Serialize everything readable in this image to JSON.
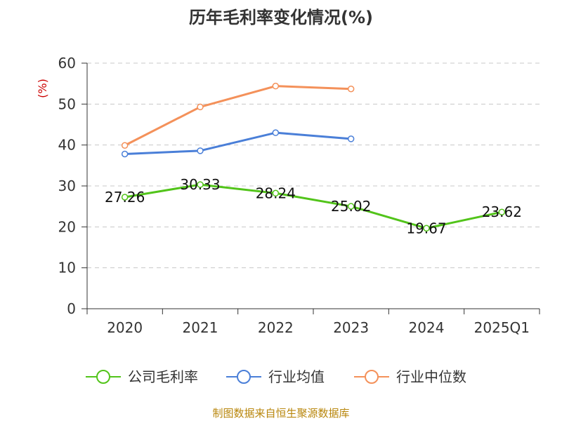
{
  "chart_data": {
    "type": "line",
    "title": "历年毛利率变化情况(%)",
    "ylabel": "(%)",
    "xlabel": "",
    "ylim": [
      0,
      60
    ],
    "yticks": [
      "0",
      "10",
      "20",
      "30",
      "40",
      "50",
      "60"
    ],
    "ytick_values": [
      0,
      10,
      20,
      30,
      40,
      50,
      60
    ],
    "categories": [
      "2020",
      "2021",
      "2022",
      "2023",
      "2024",
      "2025Q1"
    ],
    "grid": true,
    "legend_position": "bottom",
    "series": [
      {
        "name": "公司毛利率",
        "color": "#52c41a",
        "values": [
          27.26,
          30.33,
          28.24,
          25.02,
          19.67,
          23.62
        ],
        "labels": [
          "27.26",
          "30.33",
          "28.24",
          "25.02",
          "19.67",
          "23.62"
        ]
      },
      {
        "name": "行业均值",
        "color": "#4a7fd8",
        "values": [
          37.8,
          38.6,
          43.0,
          41.5,
          null,
          null
        ]
      },
      {
        "name": "行业中位数",
        "color": "#f4915a",
        "values": [
          39.9,
          49.3,
          54.4,
          53.7,
          null,
          null
        ]
      }
    ],
    "source": "制图数据来自恒生聚源数据库"
  }
}
